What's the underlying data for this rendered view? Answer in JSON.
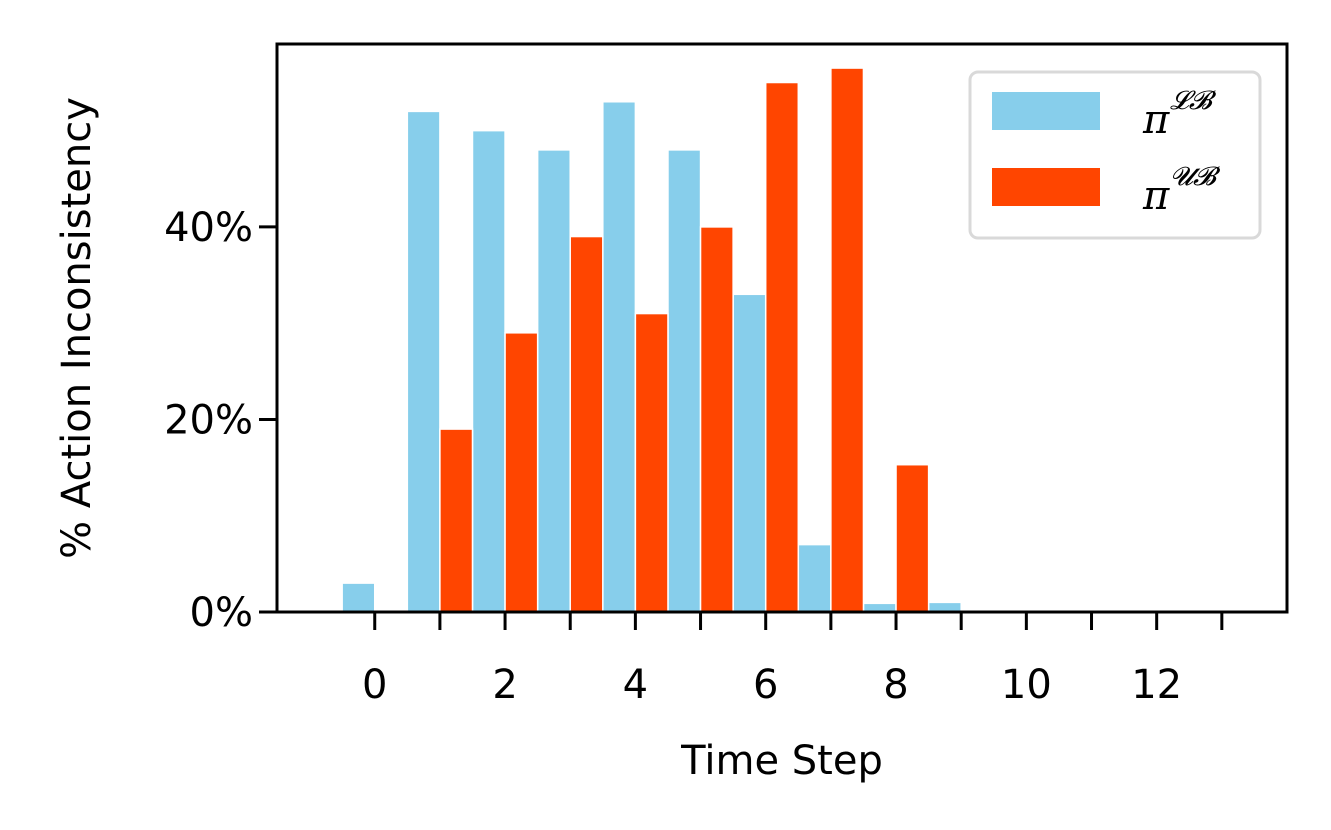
{
  "chart_data": {
    "type": "bar",
    "xlabel": "Time Step",
    "ylabel": "% Action Inconsistency",
    "xlim": [
      -1.5,
      14.0
    ],
    "ylim": [
      0,
      59
    ],
    "x_ticks_minor": [
      0,
      1,
      2,
      3,
      4,
      5,
      6,
      7,
      8,
      9,
      10,
      11,
      12,
      13
    ],
    "x_tick_labels": [
      "0",
      "2",
      "4",
      "6",
      "8",
      "10",
      "12"
    ],
    "x_tick_label_values": [
      0,
      2,
      4,
      6,
      8,
      10,
      12
    ],
    "y_ticks": [
      0,
      20,
      40
    ],
    "y_tick_labels": [
      "0%",
      "20%",
      "40%"
    ],
    "legend_position": "top-right",
    "series": [
      {
        "name": "π^{LB}",
        "legend_base": "π",
        "legend_sup": "𝓛𝓑",
        "color": "#87CEEB",
        "offset": -0.25,
        "x": [
          0,
          1,
          2,
          3,
          4,
          5,
          6,
          7,
          8,
          9
        ],
        "values": [
          3.0,
          52.0,
          50.0,
          48.0,
          53.0,
          48.0,
          33.0,
          7.0,
          0.9,
          1.0
        ]
      },
      {
        "name": "π^{UB}",
        "legend_base": "π",
        "legend_sup": "𝓤𝓑",
        "color": "#FF4500",
        "offset": 0.25,
        "x": [
          0,
          1,
          2,
          3,
          4,
          5,
          6,
          7,
          8,
          9
        ],
        "values": [
          0.0,
          19.0,
          29.0,
          39.0,
          31.0,
          40.0,
          55.0,
          56.5,
          15.3,
          0.0
        ]
      }
    ]
  }
}
